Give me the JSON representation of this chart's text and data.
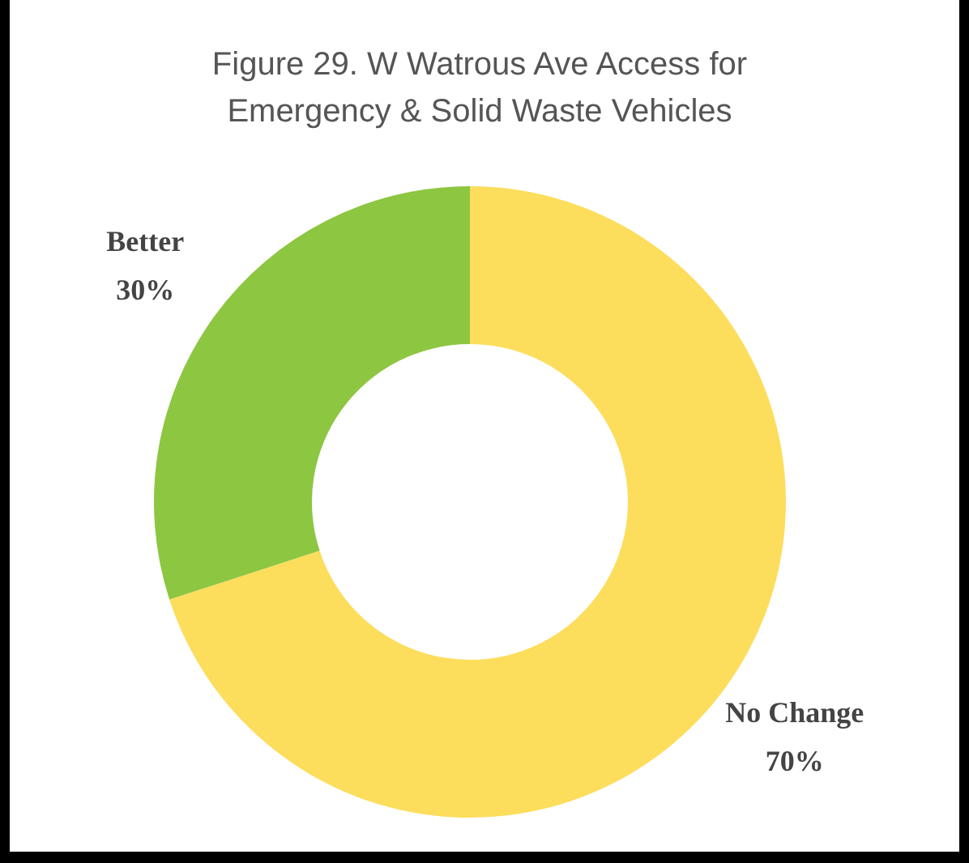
{
  "chart_data": {
    "type": "donut",
    "title": "Figure 29. W Watrous Ave Access for Emergency & Solid Waste Vehicles",
    "categories": [
      "No Change",
      "Better"
    ],
    "values": [
      70,
      30
    ],
    "colors": [
      "#fddd5c",
      "#8dc641"
    ],
    "value_labels": [
      "70%",
      "30%"
    ],
    "legend": false
  }
}
